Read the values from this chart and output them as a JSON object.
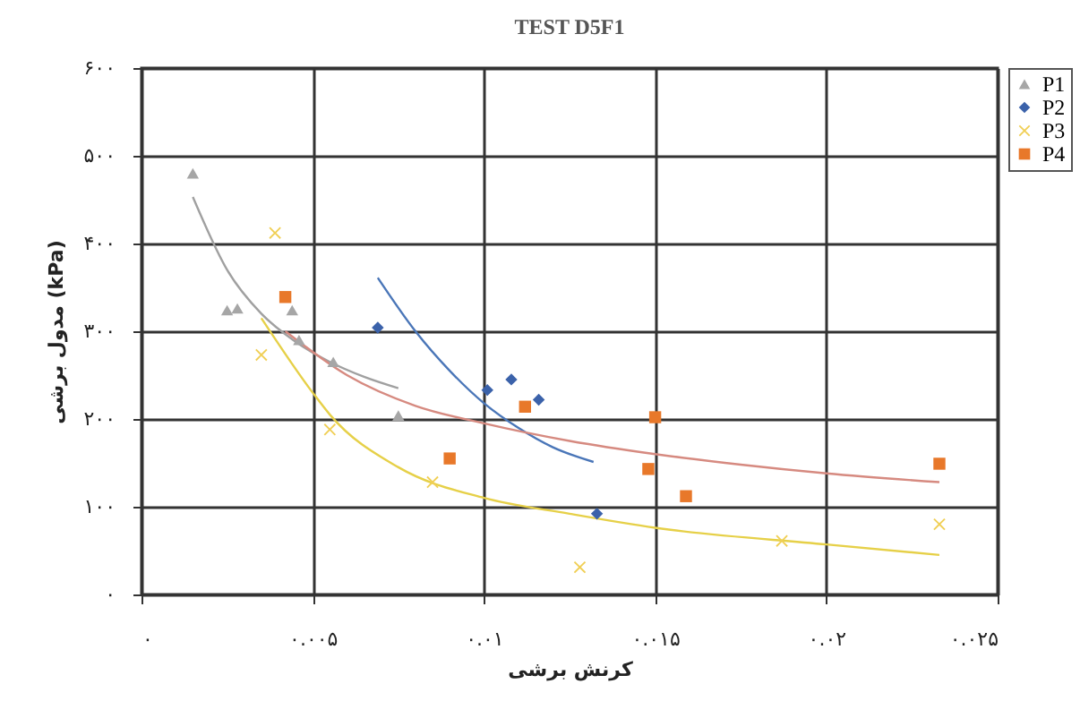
{
  "chart_data": {
    "type": "scatter",
    "title": "TEST D5F1",
    "xlabel": "کرنش برشی",
    "ylabel": "مدول برشی (kPa)",
    "xlim": [
      0,
      0.025
    ],
    "ylim": [
      0,
      600
    ],
    "xticks": [
      {
        "value": 0,
        "label": "۰"
      },
      {
        "value": 0.005,
        "label": "۰.۰۰۵"
      },
      {
        "value": 0.01,
        "label": "۰.۰۱"
      },
      {
        "value": 0.015,
        "label": "۰.۰۱۵"
      },
      {
        "value": 0.02,
        "label": "۰.۰۲"
      },
      {
        "value": 0.025,
        "label": "۰.۰۲۵"
      }
    ],
    "yticks": [
      {
        "value": 0,
        "label": "۰"
      },
      {
        "value": 100,
        "label": "۱۰۰"
      },
      {
        "value": 200,
        "label": "۲۰۰"
      },
      {
        "value": 300,
        "label": "۳۰۰"
      },
      {
        "value": 400,
        "label": "۴۰۰"
      },
      {
        "value": 500,
        "label": "۵۰۰"
      },
      {
        "value": 600,
        "label": "۶۰۰"
      }
    ],
    "grid": true,
    "legend": "right",
    "series": [
      {
        "name": "P1",
        "marker": "triangle",
        "color": "#a6a6a6",
        "x": [
          0.0015,
          0.0025,
          0.0028,
          0.0044,
          0.0046,
          0.0056,
          0.0075
        ],
        "values": [
          480,
          324,
          326,
          324,
          290,
          265,
          204
        ]
      },
      {
        "name": "P2",
        "marker": "diamond",
        "color": "#3b62aa",
        "x": [
          0.0069,
          0.0101,
          0.0108,
          0.0116,
          0.0133
        ],
        "values": [
          304,
          233,
          245,
          222,
          92
        ]
      },
      {
        "name": "P3",
        "marker": "cross",
        "color": "#f0cf55",
        "x": [
          0.0035,
          0.0039,
          0.0055,
          0.0085,
          0.0128,
          0.0187,
          0.0233
        ],
        "values": [
          273,
          412,
          188,
          128,
          31,
          61,
          80
        ]
      },
      {
        "name": "P4",
        "marker": "square",
        "color": "#e8782a",
        "x": [
          0.0042,
          0.009,
          0.0112,
          0.0148,
          0.015,
          0.0159,
          0.0233
        ],
        "values": [
          339,
          155,
          214,
          143,
          202,
          112,
          149
        ]
      },
      {
        "type": "line",
        "color": "#a0a0a0",
        "x": [
          0.0015,
          0.0025,
          0.0035,
          0.0045,
          0.0055,
          0.0065,
          0.0075
        ],
        "values": [
          453,
          370,
          320,
          288,
          265,
          248,
          235
        ]
      },
      {
        "type": "line",
        "color": "#4a76b8",
        "x": [
          0.0069,
          0.008,
          0.009,
          0.01,
          0.011,
          0.012,
          0.0132
        ],
        "values": [
          361,
          300,
          255,
          218,
          190,
          168,
          151
        ]
      },
      {
        "type": "line",
        "color": "#e6d048",
        "x": [
          0.0035,
          0.005,
          0.0055,
          0.0075,
          0.01,
          0.0125,
          0.015,
          0.02,
          0.0233
        ],
        "values": [
          315,
          230,
          205,
          145,
          110,
          92,
          76,
          57,
          45
        ]
      },
      {
        "type": "line",
        "color": "#d68a80",
        "x": [
          0.0042,
          0.006,
          0.008,
          0.01,
          0.0125,
          0.015,
          0.0175,
          0.02,
          0.0233
        ],
        "values": [
          300,
          250,
          215,
          195,
          175,
          160,
          148,
          138,
          128
        ]
      }
    ]
  }
}
